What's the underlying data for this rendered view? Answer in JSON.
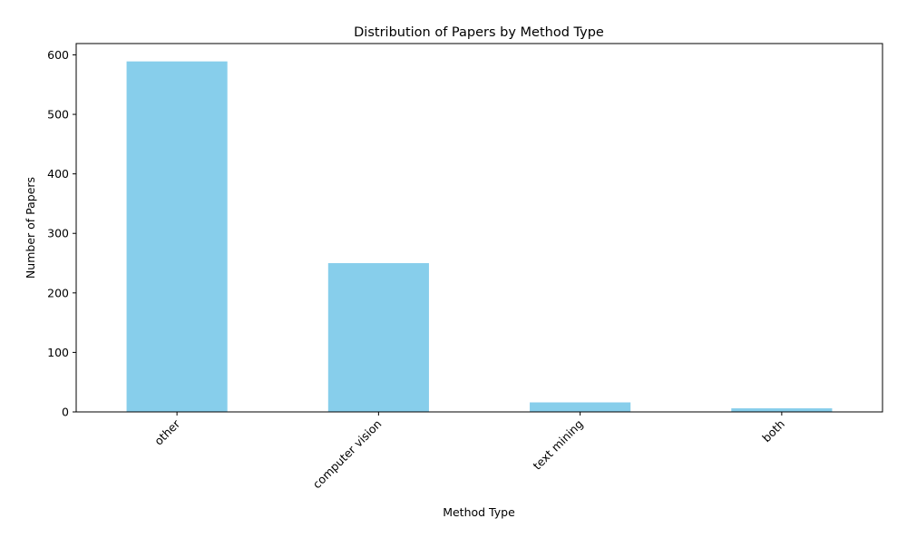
{
  "chart_data": {
    "type": "bar",
    "title": "Distribution of Papers by Method Type",
    "xlabel": "Method Type",
    "ylabel": "Number of Papers",
    "categories": [
      "other",
      "computer vision",
      "text mining",
      "both"
    ],
    "values": [
      589,
      250,
      16,
      6
    ],
    "ylim": [
      0,
      619
    ],
    "yticks": [
      0,
      100,
      200,
      300,
      400,
      500,
      600
    ],
    "grid": false,
    "bar_color": "#87CEEB"
  }
}
